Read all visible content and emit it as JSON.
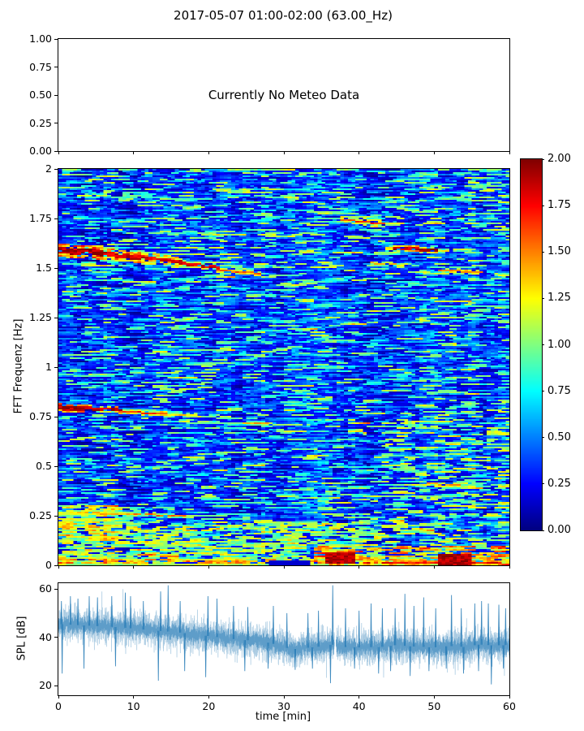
{
  "title": "2017-05-07 01:00-02:00 (63.00_Hz)",
  "figure": {
    "background": "#ffffff",
    "spine_color": "#000000",
    "text_color": "#000000",
    "seed": 7
  },
  "meteo_panel": {
    "message": "Currently No Meteo Data",
    "ylim": [
      0,
      1
    ],
    "yticks": [
      {
        "v": 1,
        "label": "1.00"
      },
      {
        "v": 0.75,
        "label": "0.75"
      },
      {
        "v": 0.5,
        "label": "0.50"
      },
      {
        "v": 0.25,
        "label": "0.25"
      },
      {
        "v": 0,
        "label": "0.00"
      }
    ],
    "xlim": [
      0,
      60
    ],
    "xticks": [
      {
        "v": 0
      },
      {
        "v": 10
      },
      {
        "v": 20
      },
      {
        "v": 30
      },
      {
        "v": 40
      },
      {
        "v": 50
      },
      {
        "v": 60
      }
    ]
  },
  "spectrogram_panel": {
    "ylabel": "FFT Frequenz [Hz]",
    "ylim": [
      0,
      2
    ],
    "yticks": [
      {
        "v": 2,
        "label": "2"
      },
      {
        "v": 1.75,
        "label": "1.75"
      },
      {
        "v": 1.5,
        "label": "1.5"
      },
      {
        "v": 1.25,
        "label": "1.25"
      },
      {
        "v": 1,
        "label": "1"
      },
      {
        "v": 0.75,
        "label": "0.75"
      },
      {
        "v": 0.5,
        "label": "0.5"
      },
      {
        "v": 0.25,
        "label": "0.25"
      },
      {
        "v": 0,
        "label": "0"
      }
    ],
    "xlim": [
      0,
      60
    ],
    "xticks": [
      {
        "v": 0
      },
      {
        "v": 10
      },
      {
        "v": 20
      },
      {
        "v": 30
      },
      {
        "v": 40
      },
      {
        "v": 50
      },
      {
        "v": 60
      }
    ]
  },
  "colorbar": {
    "colormap": "jet",
    "lim": [
      0,
      2
    ],
    "ticks": [
      {
        "v": 2,
        "label": "2.00"
      },
      {
        "v": 1.75,
        "label": "1.75"
      },
      {
        "v": 1.5,
        "label": "1.50"
      },
      {
        "v": 1.25,
        "label": "1.25"
      },
      {
        "v": 1,
        "label": "1.00"
      },
      {
        "v": 0.75,
        "label": "0.75"
      },
      {
        "v": 0.5,
        "label": "0.50"
      },
      {
        "v": 0.25,
        "label": "0.25"
      },
      {
        "v": 0,
        "label": "0.00"
      }
    ]
  },
  "spl_panel": {
    "ylabel": "SPL [dB]",
    "xlabel": "time [min]",
    "line_color": "#1f77b4",
    "ylim": [
      16,
      62.4
    ],
    "yticks": [
      {
        "v": 60,
        "label": "60"
      },
      {
        "v": 40,
        "label": "40"
      },
      {
        "v": 20,
        "label": "20"
      }
    ],
    "xlim": [
      0,
      60
    ],
    "xticks": [
      {
        "v": 0,
        "label": "0"
      },
      {
        "v": 10,
        "label": "10"
      },
      {
        "v": 20,
        "label": "20"
      },
      {
        "v": 30,
        "label": "30"
      },
      {
        "v": 40,
        "label": "40"
      },
      {
        "v": 50,
        "label": "50"
      },
      {
        "v": 60,
        "label": "60"
      }
    ]
  },
  "chart_data": [
    {
      "type": "line",
      "panel": "meteo",
      "annotation": "Currently No Meteo Data",
      "series": [],
      "xlim": [
        0,
        60
      ],
      "ylim": [
        0,
        1
      ],
      "note": "empty placeholder axes, no data plotted"
    },
    {
      "type": "heatmap",
      "panel": "spectrogram",
      "ylabel": "FFT Frequenz [Hz]",
      "xlim": [
        0,
        60
      ],
      "ylim": [
        0,
        2
      ],
      "clim": [
        0,
        2
      ],
      "colormap": "jet",
      "grid": {
        "cols": 120,
        "rows": 244
      },
      "base_noise": {
        "p": 0.055,
        "b0": 0.4,
        "b1": 0.58,
        "floor": 0.07,
        "ceil": 0.33
      },
      "noise_regions_fields": "t0,t1,f0,f1,p,bright_lo,bright_hi",
      "noise_regions": [
        [
          0,
          60,
          0,
          0.22,
          0.3,
          0.42,
          0.66
        ],
        [
          0,
          8,
          0,
          0.3,
          0.42,
          0.45,
          0.72
        ],
        [
          43,
          60,
          0.05,
          0.78,
          0.13,
          0.42,
          0.62
        ],
        [
          53,
          60,
          1.7,
          2.0,
          0.15,
          0.42,
          0.58
        ],
        [
          33,
          60,
          0,
          0.1,
          0.33,
          0.5,
          0.8
        ],
        [
          0,
          60,
          0,
          0.03,
          0.45,
          0.5,
          0.78
        ]
      ],
      "tonal_features_fields": "t0,t1,f0,f1,core_u,core_rows,halo_u,halo_rows",
      "tonal_features": [
        [
          0,
          5.5,
          1.585,
          1.572,
          0.98,
          4,
          0.78,
          2
        ],
        [
          5.5,
          11,
          1.572,
          1.552,
          0.95,
          3,
          0.72,
          2
        ],
        [
          11,
          16,
          1.552,
          1.528,
          0.92,
          2,
          0.68,
          2
        ],
        [
          16,
          21,
          1.52,
          1.5,
          0.93,
          2,
          0.58,
          1
        ],
        [
          21,
          26.5,
          1.49,
          1.474,
          0.82,
          1,
          0.62,
          1
        ],
        [
          26.5,
          29.5,
          1.47,
          1.462,
          0.5,
          1,
          0,
          0
        ],
        [
          43.5,
          44.8,
          1.598,
          1.596,
          0.66,
          2,
          0.5,
          1
        ],
        [
          44.8,
          50.3,
          1.596,
          1.586,
          0.97,
          2,
          0.7,
          1
        ],
        [
          50.3,
          51.8,
          1.586,
          1.582,
          0.66,
          1,
          0.5,
          1
        ],
        [
          48,
          54,
          1.672,
          1.698,
          0.46,
          1,
          0,
          0
        ],
        [
          33,
          37.8,
          1.752,
          1.748,
          0.46,
          1,
          0,
          0
        ],
        [
          37.8,
          43,
          1.745,
          1.722,
          0.85,
          1,
          0.62,
          2
        ],
        [
          41.8,
          45.5,
          1.525,
          1.515,
          0.7,
          1,
          0.5,
          1
        ],
        [
          50.5,
          56,
          1.49,
          1.478,
          0.78,
          1,
          0.6,
          1
        ],
        [
          58.3,
          60,
          1.468,
          1.462,
          0.6,
          1,
          0.45,
          1
        ],
        [
          2.5,
          6,
          1.868,
          1.862,
          0.58,
          1,
          0.45,
          1
        ],
        [
          6,
          20,
          1.862,
          1.846,
          0.46,
          1,
          0,
          0
        ],
        [
          27.5,
          31,
          1.392,
          1.386,
          0.5,
          1,
          0,
          0
        ],
        [
          0,
          3.2,
          0.796,
          0.79,
          0.97,
          3,
          0.75,
          1
        ],
        [
          3.2,
          8,
          0.79,
          0.779,
          0.95,
          2,
          0.7,
          1
        ],
        [
          8,
          14,
          0.776,
          0.764,
          0.85,
          1,
          0.62,
          1
        ],
        [
          14,
          18.5,
          0.762,
          0.754,
          0.68,
          1,
          0.5,
          1
        ],
        [
          18.5,
          24,
          0.75,
          0.74,
          0.5,
          1,
          0,
          0
        ],
        [
          16,
          24.5,
          0.722,
          0.717,
          0.5,
          1,
          0,
          0
        ],
        [
          24.5,
          27.5,
          0.717,
          0.714,
          0.72,
          1,
          0.5,
          1
        ],
        [
          27.5,
          33,
          0.714,
          0.71,
          0.55,
          1,
          0,
          0
        ],
        [
          38.5,
          40.5,
          0.676,
          0.672,
          0.68,
          1,
          0.45,
          1
        ],
        [
          48,
          53,
          0.416,
          0.404,
          0.75,
          1,
          0.58,
          1
        ],
        [
          0,
          5.5,
          0.262,
          0.257,
          0.62,
          2,
          0.45,
          1
        ],
        [
          4.7,
          9.5,
          0.263,
          0.26,
          0.72,
          1,
          0.5,
          1
        ],
        [
          10,
          16.5,
          0.256,
          0.252,
          0.78,
          1,
          0.5,
          1
        ],
        [
          16.5,
          22,
          0.252,
          0.249,
          0.52,
          1,
          0,
          0
        ],
        [
          10.5,
          15.5,
          0.056,
          0.044,
          0.8,
          1,
          0.62,
          1
        ],
        [
          0,
          2.2,
          0.014,
          0.012,
          0.86,
          1,
          0.6,
          1
        ],
        [
          18.5,
          23.5,
          0.016,
          0.014,
          0.68,
          1,
          0,
          0
        ],
        [
          40.8,
          60,
          0.012,
          0.008,
          0.9,
          1,
          0.68,
          1
        ],
        [
          0,
          60,
          0.004,
          0.004,
          0.52,
          1,
          0,
          0
        ]
      ],
      "blocks_fields": "t0,t1,f0,f1,u",
      "blocks": [
        [
          35.5,
          38.7,
          0.02,
          0.062,
          0.97
        ],
        [
          50.5,
          54.5,
          0.012,
          0.05,
          0.97
        ],
        [
          28,
          33,
          0.012,
          0.02,
          0.08
        ]
      ],
      "description": "Blue jet-colormap spectrogram; strong descending tonal band from 1.60 Hz at 0 min to 1.47 Hz at 26 min; bright band near 1.59 Hz at 45-50 min; band near 1.74 Hz at 38-43 min; strong tone at 0.78 Hz for 0-18 min; dense low-frequency activity below 0.22 Hz with dark-red blocks at 35.5-38.7 min and 50.5-54.5 min near 0 Hz"
    },
    {
      "type": "line",
      "panel": "spl",
      "xlabel": "time [min]",
      "ylabel": "SPL [dB]",
      "color": "#1f77b4",
      "xlim": [
        0,
        60
      ],
      "yticks": [
        20,
        40,
        60
      ],
      "baseline_db": [
        [
          0,
          45.5
        ],
        [
          4,
          44.8
        ],
        [
          8,
          44.2
        ],
        [
          12,
          43
        ],
        [
          16,
          42
        ],
        [
          20,
          40.5
        ],
        [
          24,
          39
        ],
        [
          27,
          38.4
        ],
        [
          29,
          37
        ],
        [
          31,
          35
        ],
        [
          33,
          35.6
        ],
        [
          35,
          36.2
        ],
        [
          36.4,
          37
        ],
        [
          38,
          36
        ],
        [
          40,
          35.8
        ],
        [
          43,
          36
        ],
        [
          45,
          36.8
        ],
        [
          47,
          36.2
        ],
        [
          50,
          35.8
        ],
        [
          52,
          36.4
        ],
        [
          54,
          36
        ],
        [
          56,
          37
        ],
        [
          58,
          36.6
        ],
        [
          60,
          36.8
        ]
      ],
      "noise_sigma_db": 3.1,
      "spikes": [
        [
          0.4,
          55
        ],
        [
          1.6,
          57
        ],
        [
          2.6,
          56
        ],
        [
          4.1,
          57
        ],
        [
          5.2,
          56.5
        ],
        [
          7.1,
          57
        ],
        [
          8.9,
          58.5
        ],
        [
          9.6,
          57
        ],
        [
          11.3,
          55
        ],
        [
          13.6,
          59
        ],
        [
          14.6,
          61.5
        ],
        [
          16.2,
          55
        ],
        [
          19.9,
          57
        ],
        [
          21.1,
          56
        ],
        [
          23.3,
          53
        ],
        [
          25.2,
          52.5
        ],
        [
          28.6,
          53
        ],
        [
          30.4,
          50
        ],
        [
          33.2,
          50
        ],
        [
          34.6,
          51
        ],
        [
          36.5,
          61.5
        ],
        [
          38.2,
          52
        ],
        [
          40,
          51
        ],
        [
          41.6,
          54
        ],
        [
          43.1,
          52
        ],
        [
          44.8,
          52
        ],
        [
          46.1,
          58
        ],
        [
          47.3,
          53
        ],
        [
          48.6,
          56.5
        ],
        [
          50.2,
          52
        ],
        [
          52.3,
          57.5
        ],
        [
          53.6,
          52
        ],
        [
          55.4,
          54
        ],
        [
          56.3,
          55
        ],
        [
          57.2,
          54
        ],
        [
          58.6,
          53.5
        ],
        [
          59.5,
          52
        ]
      ],
      "dips": [
        [
          0.5,
          25
        ],
        [
          3.4,
          27
        ],
        [
          7.6,
          28
        ],
        [
          13.3,
          22
        ],
        [
          16.8,
          26
        ],
        [
          19.6,
          23.5
        ],
        [
          24.8,
          26
        ],
        [
          27.9,
          27
        ],
        [
          31.5,
          26.5
        ],
        [
          33.8,
          27
        ],
        [
          36.2,
          21
        ],
        [
          39.4,
          27
        ],
        [
          42.6,
          25
        ],
        [
          44.2,
          26
        ],
        [
          46.8,
          24
        ],
        [
          49.3,
          26
        ],
        [
          51.6,
          27
        ],
        [
          53.9,
          25
        ],
        [
          55.9,
          26
        ],
        [
          57.6,
          20.5
        ],
        [
          59.2,
          27
        ]
      ],
      "gap_min": [
        36.72,
        36.94
      ]
    }
  ]
}
